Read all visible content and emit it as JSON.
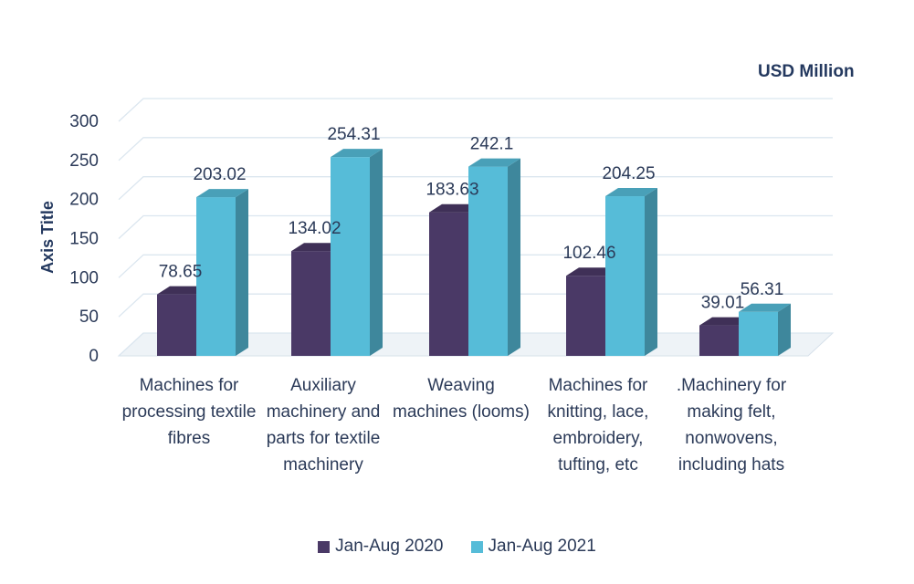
{
  "chart_data": {
    "type": "bar",
    "title": "",
    "unit_label": "USD Million",
    "ylabel": "Axis Title",
    "xlabel": "",
    "ylim": [
      0,
      300
    ],
    "yticks": [
      0,
      50,
      100,
      150,
      200,
      250,
      300
    ],
    "grid": true,
    "legend_position": "bottom",
    "categories": [
      "Machines for processing textile fibres",
      "Auxiliary machinery and parts for textile machinery",
      "Weaving machines (looms)",
      "Machines for knitting, lace, embroidery, tufting, etc",
      ".Machinery for making felt, nonwovens, including hats"
    ],
    "series": [
      {
        "name": "Jan-Aug 2020",
        "color": "#4a3966",
        "values": [
          78.65,
          134.02,
          183.63,
          102.46,
          39.01
        ],
        "labels": [
          "78.65",
          "134.02",
          "183.63",
          "102.46",
          "39.01"
        ]
      },
      {
        "name": "Jan-Aug 2021",
        "color": "#56bcd8",
        "values": [
          203.02,
          254.31,
          242.1,
          204.25,
          56.31
        ],
        "labels": [
          "203.02",
          "254.31",
          "242.1",
          "204.25",
          "56.31"
        ]
      }
    ]
  }
}
